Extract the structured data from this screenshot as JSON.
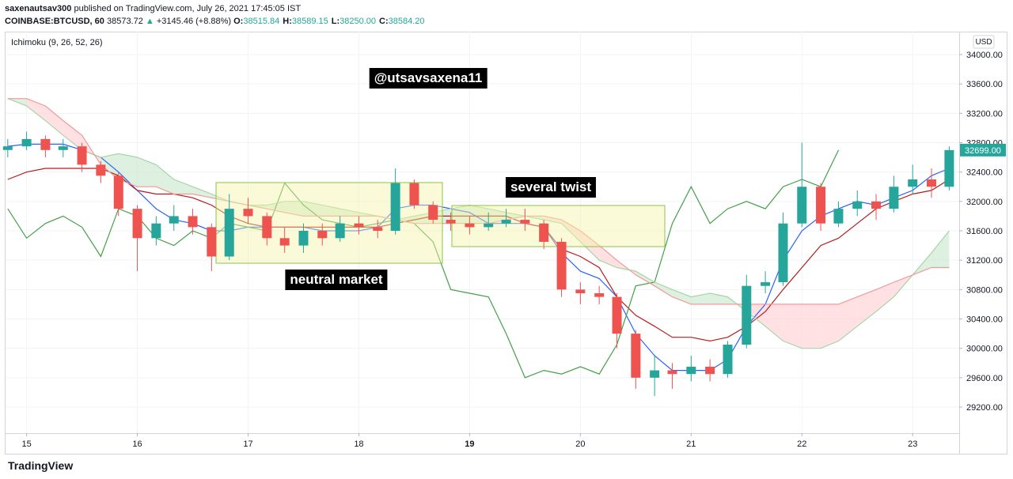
{
  "header": {
    "publisher": "saxenautsav300",
    "published": "published on TradingView.com, July 26, 2021 17:45:05 IST",
    "symbol": "COINBASE:BTCUSD, 60",
    "price": "38573.72",
    "change": "+3145.46 (+8.88%)",
    "ohlc": [
      {
        "label": "O:",
        "value": "38515.84"
      },
      {
        "label": "H:",
        "value": "38589.15"
      },
      {
        "label": "L:",
        "value": "38250.00"
      },
      {
        "label": "C:",
        "value": "38584.20"
      }
    ]
  },
  "footer": {
    "brand": "TradingView"
  },
  "chart_data": {
    "type": "candlestick",
    "indicator": "Ichimoku (9, 26, 52, 26)",
    "currency": "USD",
    "annotations": [
      "@utsavsaxena11",
      "several twist",
      "neutral market"
    ],
    "up_color": "#26a69a",
    "down_color": "#ef5350",
    "x": [
      14.83,
      15.0,
      15.17,
      15.33,
      15.5,
      15.67,
      15.83,
      16.0,
      16.17,
      16.33,
      16.5,
      16.67,
      16.83,
      17.0,
      17.17,
      17.33,
      17.5,
      17.67,
      17.83,
      18.0,
      18.17,
      18.33,
      18.5,
      18.67,
      18.83,
      19.0,
      19.17,
      19.33,
      19.5,
      19.67,
      19.83,
      20.0,
      20.17,
      20.33,
      20.5,
      20.67,
      20.83,
      21.0,
      21.17,
      21.33,
      21.5,
      21.67,
      21.83,
      22.0,
      22.17,
      22.33,
      22.5,
      22.67,
      22.83,
      23.0,
      23.17,
      23.33
    ],
    "open": [
      32700,
      32750,
      32850,
      32700,
      32750,
      32500,
      32350,
      31900,
      31500,
      31700,
      31800,
      31650,
      31250,
      31900,
      31800,
      31500,
      31400,
      31600,
      31500,
      31700,
      31650,
      31600,
      32250,
      31950,
      31750,
      31700,
      31650,
      31700,
      31750,
      31700,
      31450,
      30800,
      30750,
      30700,
      30200,
      29600,
      29700,
      29650,
      29750,
      29650,
      30050,
      30850,
      30900,
      31700,
      32200,
      31700,
      31900,
      32000,
      31900,
      32200,
      32300,
      32200
    ],
    "high": [
      32850,
      32950,
      32900,
      32850,
      32800,
      32550,
      32400,
      31950,
      31800,
      31950,
      31900,
      31700,
      32100,
      32050,
      31850,
      31650,
      31700,
      31700,
      31800,
      31800,
      31750,
      32450,
      32300,
      32000,
      31850,
      31800,
      31850,
      31900,
      31900,
      31750,
      31500,
      30900,
      30850,
      30750,
      30250,
      29900,
      29800,
      29900,
      29850,
      30100,
      31000,
      31050,
      31850,
      32800,
      32250,
      32000,
      32150,
      32100,
      32350,
      32500,
      32450,
      32750
    ],
    "low": [
      32600,
      32700,
      32600,
      32600,
      32400,
      32250,
      31800,
      31050,
      31400,
      31600,
      31550,
      31050,
      31200,
      31700,
      31400,
      31300,
      31300,
      31400,
      31450,
      31550,
      31500,
      31550,
      31900,
      31700,
      31600,
      31550,
      31600,
      31650,
      31600,
      31350,
      30700,
      30600,
      30600,
      30000,
      29450,
      29350,
      29450,
      29550,
      29550,
      29600,
      30000,
      30750,
      30850,
      31650,
      31600,
      31650,
      31800,
      31750,
      31850,
      32100,
      32050,
      32150
    ],
    "close": [
      32750,
      32850,
      32700,
      32750,
      32500,
      32350,
      31900,
      31500,
      31700,
      31800,
      31650,
      31250,
      31900,
      31800,
      31500,
      31400,
      31600,
      31500,
      31700,
      31650,
      31600,
      32250,
      31950,
      31750,
      31700,
      31650,
      31700,
      31750,
      31700,
      31450,
      30800,
      30750,
      30700,
      30200,
      29600,
      29700,
      29650,
      29750,
      29650,
      30050,
      30850,
      30900,
      31700,
      32200,
      31700,
      31900,
      32000,
      31900,
      32200,
      32300,
      32200,
      32699
    ],
    "last_price_label": "32699.00",
    "last_price_color": "#26a69a",
    "series": [
      {
        "color": "#2962ff",
        "values": [
          32750,
          32780,
          32780,
          32780,
          32700,
          32600,
          32400,
          32150,
          31900,
          31750,
          31700,
          31600,
          31600,
          31650,
          31650,
          31650,
          31650,
          31600,
          31600,
          31600,
          31650,
          31900,
          31950,
          31950,
          31900,
          31850,
          31700,
          31700,
          31700,
          31650,
          31300,
          31050,
          30950,
          30700,
          30200,
          29900,
          29700,
          29700,
          29700,
          29850,
          30300,
          30600,
          31200,
          31600,
          31800,
          31900,
          32000,
          31950,
          32050,
          32150,
          32350,
          32450
        ]
      },
      {
        "color": "#b71c1c",
        "values": [
          32300,
          32400,
          32450,
          32450,
          32450,
          32450,
          32350,
          32150,
          32100,
          32100,
          32050,
          31950,
          31800,
          31700,
          31650,
          31650,
          31650,
          31650,
          31650,
          31650,
          31650,
          31700,
          31750,
          31800,
          31800,
          31800,
          31800,
          31800,
          31700,
          31650,
          31350,
          31250,
          31100,
          30700,
          30450,
          30300,
          30150,
          30150,
          30100,
          30150,
          30300,
          30500,
          30800,
          31100,
          31400,
          31500,
          31700,
          31900,
          32000,
          32100,
          32150,
          32300
        ]
      },
      {
        "color": "#43a047",
        "values": [
          31900,
          31500,
          31700,
          31800,
          31650,
          31250,
          31900,
          31800,
          31500,
          31400,
          31600,
          31500,
          31700,
          31650,
          31600,
          32250,
          31950,
          31750,
          31700,
          31650,
          31700,
          31750,
          31700,
          31450,
          30800,
          30750,
          30700,
          30200,
          29600,
          29700,
          29650,
          29750,
          29650,
          30050,
          30850,
          30900,
          31700,
          32200,
          31700,
          31900,
          32000,
          31900,
          32200,
          32300,
          32200,
          32699,
          null,
          null,
          null,
          null,
          null,
          null
        ]
      },
      {
        "color": "#a5d6a7",
        "values": [
          33400,
          33300,
          33100,
          32900,
          32700,
          32600,
          32650,
          32600,
          32500,
          32300,
          32200,
          32100,
          32000,
          31950,
          31950,
          32000,
          32000,
          31950,
          31900,
          31850,
          31800,
          31750,
          31800,
          31850,
          31900,
          31950,
          31900,
          31850,
          31800,
          31750,
          31700,
          31450,
          31200,
          31100,
          31050,
          30900,
          30800,
          30700,
          30750,
          30700,
          30500,
          30300,
          30100,
          30000,
          30000,
          30100,
          30300,
          30500,
          30700,
          31000,
          31300,
          31600
        ]
      },
      {
        "color": "#ef9a9a",
        "values": [
          33400,
          33400,
          33300,
          33100,
          32900,
          32500,
          32300,
          32200,
          32200,
          32100,
          32100,
          32050,
          32000,
          31950,
          31900,
          31850,
          31800,
          31800,
          31800,
          31800,
          31800,
          31750,
          31700,
          31700,
          31700,
          31700,
          31700,
          31750,
          31800,
          31800,
          31750,
          31600,
          31400,
          31200,
          31000,
          30850,
          30700,
          30600,
          30600,
          30600,
          30600,
          30600,
          30600,
          30600,
          30600,
          30600,
          30700,
          30800,
          30900,
          31000,
          31100,
          31100
        ]
      }
    ],
    "cloud_up_color": "#c8e6c9",
    "cloud_down_color": "#ffcdd2",
    "xlim": [
      14.81,
      23.42
    ],
    "xticks": [
      15,
      16,
      17,
      18,
      19,
      20,
      21,
      22,
      23
    ],
    "bold_xtick": 19,
    "ylim": [
      28845,
      34312
    ],
    "yticks": [
      {
        "value": 29200,
        "label": "29200.00"
      },
      {
        "value": 29600,
        "label": "29600.00"
      },
      {
        "value": 30000,
        "label": "30000.00"
      },
      {
        "value": 30400,
        "label": "30400.00"
      },
      {
        "value": 30800,
        "label": "30800.00"
      },
      {
        "value": 31200,
        "label": "31200.00"
      },
      {
        "value": 31600,
        "label": "31600.00"
      },
      {
        "value": 32000,
        "label": "32000.00"
      },
      {
        "value": 32400,
        "label": "32400.00"
      },
      {
        "value": 32800,
        "label": "32800.00"
      },
      {
        "value": 33200,
        "label": "33200.00"
      },
      {
        "value": 33600,
        "label": "33600.00"
      },
      {
        "value": 34000,
        "label": "34000.00"
      }
    ],
    "grid": true
  }
}
